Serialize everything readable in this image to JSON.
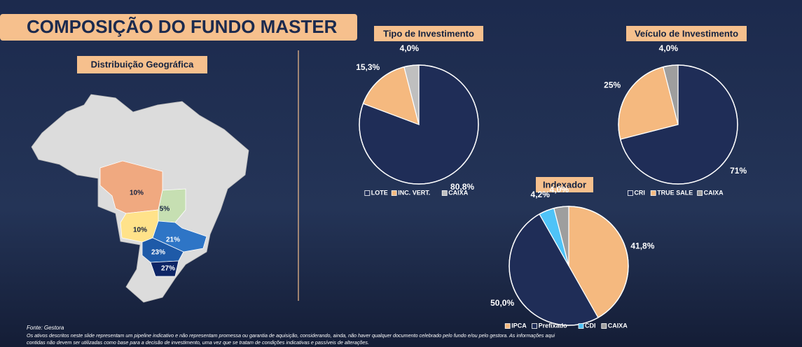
{
  "header": {
    "title": "COMPOSIÇÃO DO FUNDO MASTER"
  },
  "map": {
    "title": "Distribuição Geográfica",
    "regions": [
      {
        "label": "10%"
      },
      {
        "label": "5%"
      },
      {
        "label": "10%"
      },
      {
        "label": "21%"
      },
      {
        "label": "23%"
      },
      {
        "label": "27%"
      }
    ]
  },
  "chart_data": [
    {
      "type": "pie",
      "title": "Tipo de Investimento",
      "categories": [
        "LOTE",
        "INC. VERT.",
        "CAIXA"
      ],
      "values": [
        80.8,
        15.3,
        4.0
      ],
      "value_labels": [
        "80,8%",
        "15,3%",
        "4,0%"
      ],
      "colors": [
        "#1f2d57",
        "#f5b97f",
        "#bfbfbf"
      ]
    },
    {
      "type": "pie",
      "title": "Veículo de Investimento",
      "categories": [
        "CRI",
        "TRUE SALE",
        "CAIXA"
      ],
      "values": [
        71,
        25,
        4.0
      ],
      "value_labels": [
        "71%",
        "25%",
        "4,0%"
      ],
      "colors": [
        "#1f2d57",
        "#f5b97f",
        "#9e9e9e"
      ]
    },
    {
      "type": "pie",
      "title": "Indexador",
      "categories": [
        "IPCA",
        "Prefixado",
        "CDI",
        "CAIXA"
      ],
      "values": [
        41.8,
        50.0,
        4.2,
        4.0
      ],
      "value_labels": [
        "41,8%",
        "50,0%",
        "4,2%",
        "4,0%"
      ],
      "colors": [
        "#f5b97f",
        "#1f2d57",
        "#4fc3f7",
        "#9e9e9e"
      ]
    }
  ],
  "footer": {
    "source": "Fonte: Gestora",
    "disclaimer": [
      "Os ativos descritos neste slide representam um pipeline indicativo e não representam promessa ou garantia de aquisição, considerando, ainda, não haver qualquer documento celebrado pelo fundo e/ou pelo gestora. As informações aqui",
      "contidas não devem ser utilizadas como base para a decisão de investimento, uma vez que se tratam de condições indicativas e passíveis de alterações."
    ]
  }
}
